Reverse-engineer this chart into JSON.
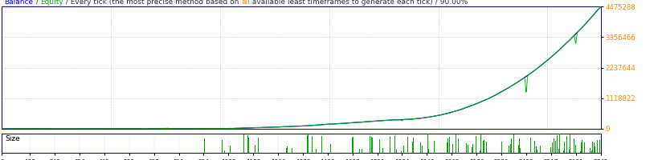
{
  "title_parts": [
    {
      "text": "Balance",
      "color": "#0000FF"
    },
    {
      "text": " / ",
      "color": "#333333"
    },
    {
      "text": "Equity",
      "color": "#00AA00"
    },
    {
      "text": " / Every tick (the most precise method based on ",
      "color": "#333333"
    },
    {
      "text": "all",
      "color": "#FF8C00"
    },
    {
      "text": " available least timeframes to generate each tick)",
      "color": "#333333"
    },
    {
      "text": " / 90.00%",
      "color": "#333333"
    }
  ],
  "bg_color": "#FFFFFF",
  "plot_bg_color": "#FFFFFF",
  "grid_color": "#BBBBBB",
  "x_ticks": [
    0,
    128,
    242,
    356,
    469,
    583,
    697,
    811,
    924,
    1038,
    1152,
    1266,
    1379,
    1493,
    1607,
    1721,
    1834,
    1948,
    2062,
    2176,
    2289,
    2403,
    2517,
    2631,
    2745
  ],
  "y_ticks": [
    0,
    1118822,
    2237644,
    3356466,
    4475288
  ],
  "xmin": 0,
  "xmax": 2745,
  "ymin": 0,
  "ymax": 4475288,
  "balance_color": "#0000CC",
  "equity_color": "#00BB00",
  "size_color": "#00AA00",
  "size_label": "Size",
  "border_color": "#000080",
  "tick_label_color": "#FF8C00",
  "font_size": 6.5,
  "drawdown_locs": [
    1834,
    2403,
    2630
  ],
  "drawdown_depths": [
    0.12,
    0.3,
    0.1
  ]
}
